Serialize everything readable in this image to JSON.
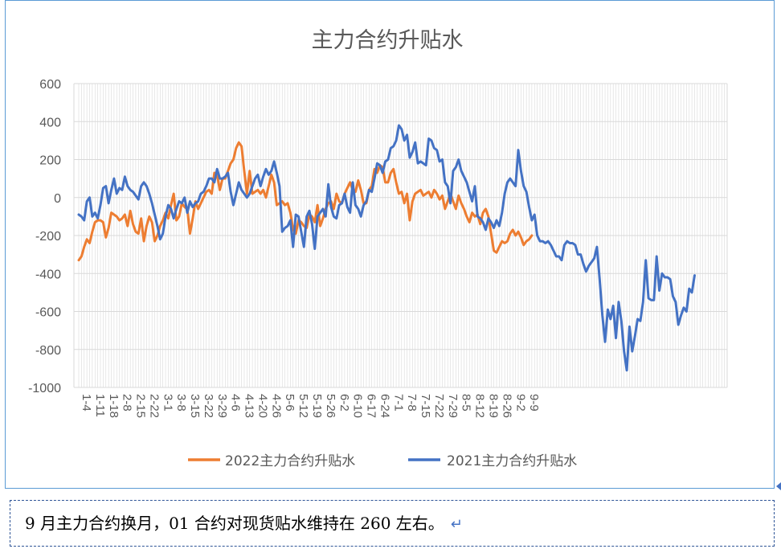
{
  "chart_data": {
    "type": "line",
    "title": "主力合约升贴水",
    "ylim": [
      -1000,
      600
    ],
    "y_ticks": [
      600,
      400,
      200,
      0,
      -200,
      -400,
      -600,
      -800,
      -1000
    ],
    "x_tick_labels": [
      "1-4",
      "1-11",
      "1-18",
      "2-8",
      "2-15",
      "2-22",
      "3-1",
      "3-8",
      "3-15",
      "3-22",
      "3-29",
      "4-6",
      "4-13",
      "4-20",
      "4-26",
      "5-6",
      "5-12",
      "5-19",
      "5-26",
      "6-2",
      "6-10",
      "6-17",
      "6-24",
      "7-1",
      "7-8",
      "7-15",
      "7-22",
      "7-29",
      "8-5",
      "8-12",
      "8-19",
      "8-26",
      "9-2",
      "9-9"
    ],
    "grid": "vertical-dense",
    "legend_position": "bottom",
    "series": [
      {
        "name": "2022主力合约升贴水",
        "color": "#ed7d31",
        "values": [
          -330,
          -310,
          -260,
          -220,
          -240,
          -180,
          -130,
          -120,
          -120,
          -130,
          -210,
          -160,
          -80,
          -90,
          -100,
          -120,
          -110,
          -90,
          -150,
          -70,
          -140,
          -180,
          -190,
          -110,
          -230,
          -150,
          -100,
          -130,
          -230,
          -200,
          -150,
          -120,
          -80,
          -110,
          -40,
          20,
          -120,
          -100,
          -30,
          -50,
          -60,
          -190,
          -110,
          -20,
          -60,
          -30,
          0,
          30,
          40,
          20,
          130,
          120,
          40,
          100,
          100,
          140,
          180,
          200,
          260,
          290,
          270,
          140,
          20,
          140,
          20,
          30,
          40,
          20,
          40,
          0,
          60,
          120,
          80,
          -40,
          -30,
          -20,
          -40,
          -30,
          -80,
          -170,
          -190,
          -120,
          -130,
          -150,
          -160,
          -90,
          -100,
          -130,
          -40,
          -150,
          -110,
          -60,
          -30,
          -20,
          -60,
          20,
          -20,
          -30,
          20,
          50,
          80,
          40,
          30,
          90,
          40,
          -30,
          -30,
          40,
          60,
          150,
          130,
          170,
          160,
          80,
          80,
          130,
          150,
          80,
          20,
          30,
          -30,
          20,
          -120,
          -20,
          20,
          30,
          40,
          10,
          20,
          30,
          0,
          40,
          20,
          -10,
          10,
          -60,
          -20,
          20,
          -20,
          -60,
          10,
          -30,
          -60,
          -100,
          -130,
          -80,
          -100,
          -90,
          -140,
          -80,
          -60,
          -100,
          -190,
          -280,
          -290,
          -260,
          -230,
          -240,
          -230,
          -190,
          -170,
          -200,
          -180,
          -210,
          -250,
          -230,
          -220,
          -200
        ]
      },
      {
        "name": "2021主力合约升贴水",
        "color": "#4472c4",
        "values": [
          -90,
          -100,
          -120,
          -20,
          0,
          -100,
          -80,
          -110,
          -40,
          50,
          60,
          -30,
          40,
          100,
          20,
          50,
          40,
          110,
          60,
          40,
          30,
          10,
          -10,
          60,
          80,
          60,
          20,
          -30,
          -90,
          -150,
          -220,
          -190,
          -100,
          -40,
          -60,
          -110,
          -60,
          -20,
          -30,
          0,
          -80,
          -20,
          -50,
          -30,
          -20,
          20,
          30,
          60,
          100,
          100,
          80,
          150,
          100,
          100,
          110,
          130,
          30,
          -40,
          20,
          80,
          40,
          20,
          0,
          20,
          60,
          100,
          120,
          60,
          110,
          150,
          120,
          140,
          190,
          130,
          60,
          -180,
          -160,
          -150,
          -120,
          -260,
          -90,
          -100,
          -180,
          -260,
          -100,
          -70,
          -140,
          -270,
          -100,
          -80,
          -60,
          -100,
          70,
          -50,
          -100,
          -110,
          -40,
          -30,
          20,
          -50,
          -80,
          80,
          -40,
          -60,
          -100,
          -40,
          -20,
          40,
          30,
          100,
          180,
          170,
          130,
          190,
          200,
          260,
          270,
          300,
          380,
          360,
          300,
          330,
          210,
          240,
          290,
          180,
          190,
          180,
          170,
          310,
          300,
          260,
          250,
          190,
          200,
          80,
          60,
          -30,
          140,
          160,
          200,
          140,
          110,
          80,
          30,
          -20,
          60,
          -100,
          -110,
          -130,
          -170,
          -110,
          -130,
          -160,
          -120,
          -150,
          -80,
          20,
          80,
          100,
          80,
          60,
          250,
          140,
          60,
          30,
          -50,
          -120,
          -90,
          -200,
          -230,
          -230,
          -240,
          -230,
          -250,
          -280,
          -310,
          -310,
          -330,
          -250,
          -230,
          -240,
          -240,
          -250,
          -300,
          -300,
          -350,
          -390,
          -360,
          -340,
          -320,
          -260,
          -430,
          -620,
          -760,
          -590,
          -640,
          -570,
          -740,
          -550,
          -650,
          -810,
          -910,
          -680,
          -810,
          -730,
          -640,
          -650,
          -550,
          -330,
          -530,
          -540,
          -540,
          -310,
          -490,
          -400,
          -420,
          -420,
          -430,
          -520,
          -550,
          -670,
          -620,
          -580,
          -600,
          -480,
          -500,
          -410
        ]
      }
    ]
  },
  "caption": {
    "text": "9 月主力合约换月，01 合约对现货贴水维持在 260 左右。",
    "return_mark": "↵"
  },
  "colors": {
    "frame": "#5b9bd5",
    "grid": "#d9d9d9",
    "axis_text": "#595959",
    "caption_border": "#2f5597"
  }
}
